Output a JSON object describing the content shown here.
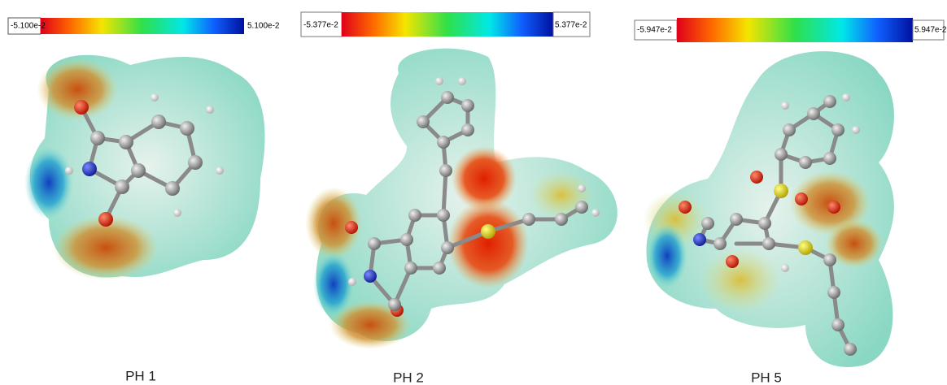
{
  "panels": [
    {
      "scale_min": "-5.100e-2",
      "scale_max": "5.100e-2",
      "caption": "PH 1"
    },
    {
      "scale_min": "-5.377e-2",
      "scale_max": "5.377e-2",
      "caption": "PH 2"
    },
    {
      "scale_min": "-5.947e-2",
      "scale_max": "5.947e-2",
      "caption": "PH 5"
    }
  ]
}
